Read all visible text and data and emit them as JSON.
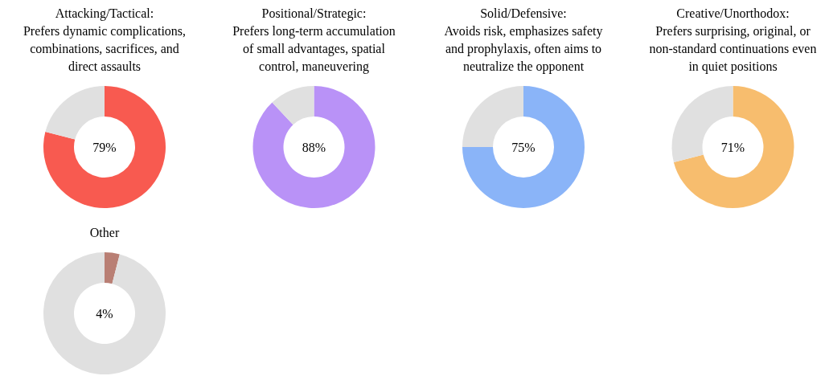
{
  "chart_data": [
    {
      "type": "donut",
      "title": "Attacking/Tactical:",
      "subtitle": "Prefers dynamic complications,\ncombinations, sacrifices, and\ndirect assaults",
      "categories": [
        null,
        null
      ],
      "values": [
        79,
        21
      ],
      "colors": [
        "#f85a50",
        "#e0e0e0"
      ],
      "annotations": [
        "79%"
      ]
    },
    {
      "type": "donut",
      "title": "Positional/Strategic:",
      "subtitle": "Prefers long-term accumulation\nof small advantages, spatial\ncontrol, maneuvering",
      "categories": [
        null,
        null
      ],
      "values": [
        88,
        12
      ],
      "colors": [
        "#b992f7",
        "#e0e0e0"
      ],
      "annotations": [
        "88%"
      ]
    },
    {
      "type": "donut",
      "title": "Solid/Defensive:",
      "subtitle": "Avoids risk, emphasizes safety\nand prophylaxis, often aims to\nneutralize the opponent",
      "categories": [
        null,
        null
      ],
      "values": [
        75,
        25
      ],
      "colors": [
        "#8ab4f8",
        "#e0e0e0"
      ],
      "annotations": [
        "75%"
      ]
    },
    {
      "type": "donut",
      "title": "Creative/Unorthodox:",
      "subtitle": "Prefers surprising, original, or\nnon-standard continuations even\nin quiet positions",
      "categories": [
        null,
        null
      ],
      "values": [
        71,
        29
      ],
      "colors": [
        "#f7bd6e",
        "#e0e0e0"
      ],
      "annotations": [
        "71%"
      ]
    },
    {
      "type": "donut",
      "title": "Other",
      "categories": [
        null,
        null
      ],
      "values": [
        4,
        96
      ],
      "colors": [
        "#b97f74",
        "#e0e0e0"
      ],
      "annotations": [
        "4%"
      ]
    }
  ]
}
